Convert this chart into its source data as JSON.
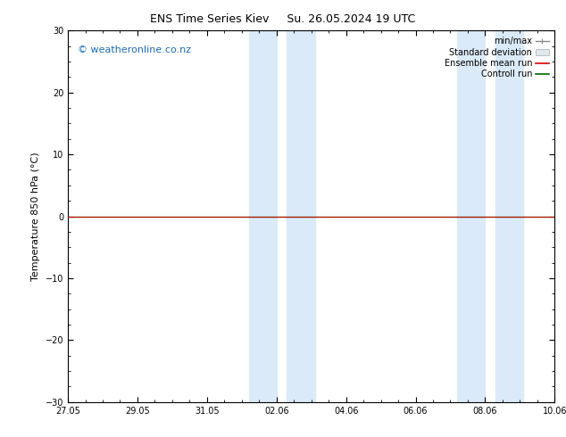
{
  "title_left": "ENS Time Series Kiev",
  "title_right": "Su. 26.05.2024 19 UTC",
  "ylabel": "Temperature 850 hPa (°C)",
  "ylim": [
    -30,
    30
  ],
  "yticks": [
    -30,
    -20,
    -10,
    0,
    10,
    20,
    30
  ],
  "xlim_start": 0,
  "xlim_end": 14,
  "xtick_labels": [
    "27.05",
    "29.05",
    "31.05",
    "02.06",
    "04.06",
    "06.06",
    "08.06",
    "10.06"
  ],
  "xtick_positions": [
    0,
    2,
    4,
    6,
    8,
    10,
    12,
    14
  ],
  "shaded_bands": [
    [
      5.2,
      6.0
    ],
    [
      6.3,
      7.1
    ],
    [
      11.2,
      12.0
    ],
    [
      12.3,
      13.1
    ]
  ],
  "shade_color": "#daeaf8",
  "line_y": 0,
  "ensemble_mean_color": "#dd0000",
  "control_run_color": "#006600",
  "zero_line_color": "#000000",
  "watermark_text": "© weatheronline.co.nz",
  "watermark_color": "#1a6abf",
  "background_color": "#ffffff",
  "legend_entries": [
    "min/max",
    "Standard deviation",
    "Ensemble mean run",
    "Controll run"
  ],
  "legend_colors": [
    "#888888",
    "#cccccc",
    "#dd0000",
    "#006600"
  ],
  "fig_width": 6.34,
  "fig_height": 4.9,
  "dpi": 100
}
